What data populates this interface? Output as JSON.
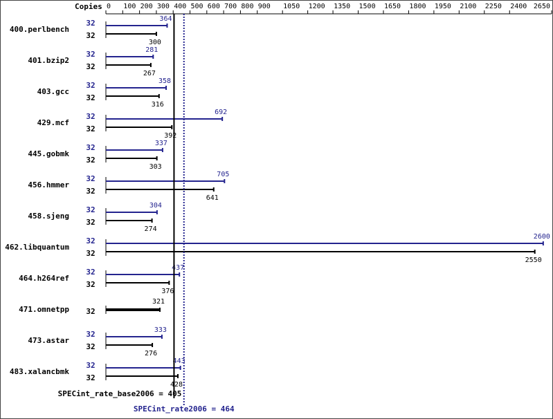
{
  "chart_data": {
    "type": "bar",
    "orientation": "horizontal",
    "copies_header": "Copies",
    "categories": [
      "400.perlbench",
      "401.bzip2",
      "403.gcc",
      "429.mcf",
      "445.gobmk",
      "456.hmmer",
      "458.sjeng",
      "462.libquantum",
      "464.h264ref",
      "471.omnetpp",
      "473.astar",
      "483.xalancbmk"
    ],
    "series": [
      {
        "color": "#23238e",
        "copies": [
          32,
          32,
          32,
          32,
          32,
          32,
          32,
          32,
          32,
          null,
          32,
          32
        ],
        "values": [
          364,
          281,
          358,
          692,
          337,
          705,
          304,
          2600,
          437,
          null,
          333,
          443
        ]
      },
      {
        "color": "#000000",
        "copies": [
          32,
          32,
          32,
          32,
          32,
          32,
          32,
          32,
          32,
          32,
          32,
          32
        ],
        "values": [
          300,
          267,
          316,
          392,
          303,
          641,
          274,
          2550,
          376,
          321,
          276,
          428
        ]
      }
    ],
    "xlim": [
      0,
      2650
    ],
    "xticks": [
      0,
      100,
      200,
      300,
      400,
      500,
      600,
      700,
      800,
      900,
      1050,
      1200,
      1350,
      1500,
      1650,
      1800,
      1950,
      2100,
      2250,
      2400,
      2650
    ],
    "base_metric": {
      "label": "SPECint_rate_base2006 = 405",
      "value": 405,
      "color": "#000000"
    },
    "peak_metric": {
      "label": "SPECint_rate2006 = 464",
      "value": 464,
      "color": "#23238e"
    }
  }
}
